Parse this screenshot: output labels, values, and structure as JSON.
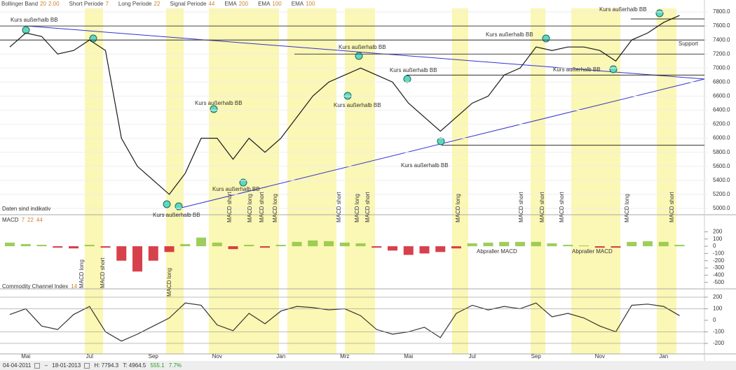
{
  "header": {
    "items": [
      {
        "label": "Bollinger Band",
        "params": [
          "20",
          "2.00"
        ]
      },
      {
        "label": "Short Periode",
        "params": [
          "7"
        ]
      },
      {
        "label": "Long Periode",
        "params": [
          "22"
        ]
      },
      {
        "label": "Signal Periode",
        "params": [
          "44"
        ]
      },
      {
        "label": "EMA",
        "params": [
          "200"
        ]
      },
      {
        "label": "EMA",
        "params": [
          "100"
        ]
      },
      {
        "label": "EMA",
        "params": [
          "100"
        ]
      }
    ]
  },
  "chart_data": [
    {
      "type": "line",
      "color": "#1a1a1a",
      "grid": true,
      "values": [
        7300,
        7500,
        7450,
        7200,
        7250,
        7400,
        7250,
        6000,
        5600,
        5400,
        5200,
        5500,
        6000,
        6000,
        5700,
        6000,
        5800,
        6000,
        6300,
        6600,
        6800,
        6900,
        7000,
        6900,
        6800,
        6500,
        6300,
        6100,
        6300,
        6500,
        6600,
        6900,
        7000,
        7300,
        7250,
        7300,
        7300,
        7250,
        7100,
        7400,
        7500,
        7650,
        7750
      ],
      "ylim": [
        4900,
        7900
      ],
      "yticks": [
        {
          "value": 5000,
          "label": "5000.0"
        },
        {
          "value": 5200,
          "label": "5200.0"
        },
        {
          "value": 5400,
          "label": "5400.0"
        },
        {
          "value": 5600,
          "label": "5600.0"
        },
        {
          "value": 5800,
          "label": "5800.0"
        },
        {
          "value": 6000,
          "label": "6000.0"
        },
        {
          "value": 6200,
          "label": "6200.0"
        },
        {
          "value": 6400,
          "label": "6400.0"
        },
        {
          "value": 6600,
          "label": "6600.0"
        },
        {
          "value": 6800,
          "label": "6800.0"
        },
        {
          "value": 7000,
          "label": "7000.0"
        },
        {
          "value": 7200,
          "label": "7200.0"
        },
        {
          "value": 7400,
          "label": "7400.0"
        },
        {
          "value": 7600,
          "label": "7600.0"
        },
        {
          "value": 7800,
          "label": "7800.0"
        }
      ],
      "hlines": [
        7700,
        7600,
        7400,
        7200,
        6900,
        5900
      ],
      "annotations": [
        "Kurs außerhalb BB",
        "Kurs außerhalb BB",
        "Kurs außerhalb BB",
        "Kurs außerhalb BB",
        "Kurs außerhalb BB",
        "Kurs außerhalb BB",
        "Kurs außerhalb BB",
        "Kurs außerhalb BB",
        "Kurs außerhalb BB",
        "Kurs außerhalb BB",
        "Kurs außerhalb BB",
        "Support"
      ],
      "signals": [
        "MACD short",
        "MACD long",
        "MACD short",
        "MACD long",
        "MACD short",
        "MACD long",
        "MACD short",
        "MACD long",
        "MACD short",
        "MACD short",
        "MACD short",
        "MACD long",
        "MACD short"
      ],
      "notice": "Daten sind indikativ"
    },
    {
      "type": "bar",
      "title": "MACD",
      "params": [
        "7",
        "22",
        "44"
      ],
      "pos_color": "#8cc63f",
      "neg_color": "#d0202e",
      "values": [
        50,
        30,
        20,
        -20,
        -30,
        20,
        -20,
        -200,
        -350,
        -200,
        -80,
        30,
        120,
        50,
        -40,
        20,
        -20,
        20,
        60,
        80,
        70,
        50,
        40,
        -20,
        -60,
        -120,
        -100,
        -80,
        -30,
        40,
        50,
        60,
        60,
        60,
        40,
        20,
        10,
        -20,
        -20,
        60,
        70,
        60,
        20
      ],
      "ylim": [
        -580,
        310
      ],
      "yticks": [
        200,
        100,
        0,
        -100,
        -200,
        -300,
        -400,
        -500
      ],
      "signals": [
        "MACD long",
        "MACD short",
        "MACD long"
      ],
      "annotations": [
        "Abpraller MACD",
        "Abpraller MACD"
      ]
    },
    {
      "type": "line",
      "title": "Commodity Channel Index",
      "params": [
        "14"
      ],
      "color": "#333333",
      "categories": [
        null,
        "Mai",
        null,
        null,
        null,
        "Jul",
        null,
        null,
        null,
        "Sep",
        null,
        null,
        null,
        "Nov",
        null,
        null,
        null,
        "Jan",
        null,
        null,
        null,
        "Mrz",
        null,
        null,
        null,
        "Mai",
        null,
        null,
        null,
        "Jul",
        null,
        null,
        null,
        "Sep",
        null,
        null,
        null,
        "Nov",
        null,
        null,
        null,
        "Jan",
        null
      ],
      "values": [
        50,
        100,
        -50,
        -80,
        50,
        120,
        -100,
        -180,
        -120,
        -50,
        20,
        150,
        130,
        -40,
        -90,
        60,
        -30,
        80,
        120,
        110,
        90,
        100,
        40,
        -80,
        -120,
        -100,
        -60,
        -150,
        60,
        130,
        90,
        120,
        100,
        150,
        30,
        60,
        20,
        -50,
        -100,
        130,
        140,
        120,
        40
      ],
      "ylim": [
        -285,
        260
      ],
      "yticks": [
        200,
        100,
        0,
        -100,
        -200
      ]
    }
  ],
  "footer": {
    "start": "04-04-2011",
    "end": "18-01-2013",
    "high": "H: 7794.3",
    "low": "T: 4964.5",
    "change": "555.1",
    "change_pct": "7.7%"
  }
}
